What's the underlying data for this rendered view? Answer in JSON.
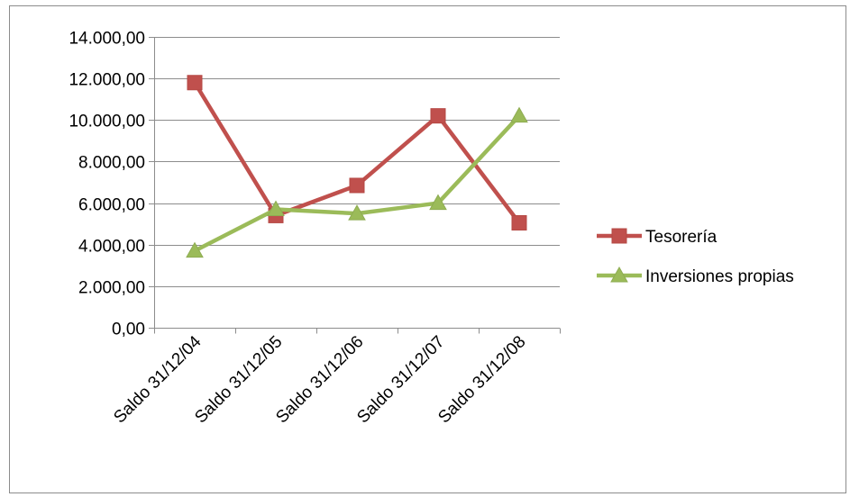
{
  "chart_data": {
    "type": "line",
    "categories": [
      "Saldo 31/12/04",
      "Saldo 31/12/05",
      "Saldo 31/12/06",
      "Saldo 31/12/07",
      "Saldo 31/12/08"
    ],
    "y_tick_labels": [
      "0,00",
      "2.000,00",
      "4.000,00",
      "6.000,00",
      "8.000,00",
      "10.000,00",
      "12.000,00",
      "14.000,00"
    ],
    "ylim": [
      0,
      14000
    ],
    "y_step": 2000,
    "grid": true,
    "legend_position": "right",
    "series": [
      {
        "name": "Tesorería",
        "values": [
          11800,
          5400,
          6850,
          10200,
          5050
        ],
        "color": "#c0504d",
        "marker": "square"
      },
      {
        "name": "Inversiones propias",
        "values": [
          3700,
          5700,
          5500,
          6000,
          10200
        ],
        "color": "#9bbb59",
        "marker": "triangle"
      }
    ]
  }
}
